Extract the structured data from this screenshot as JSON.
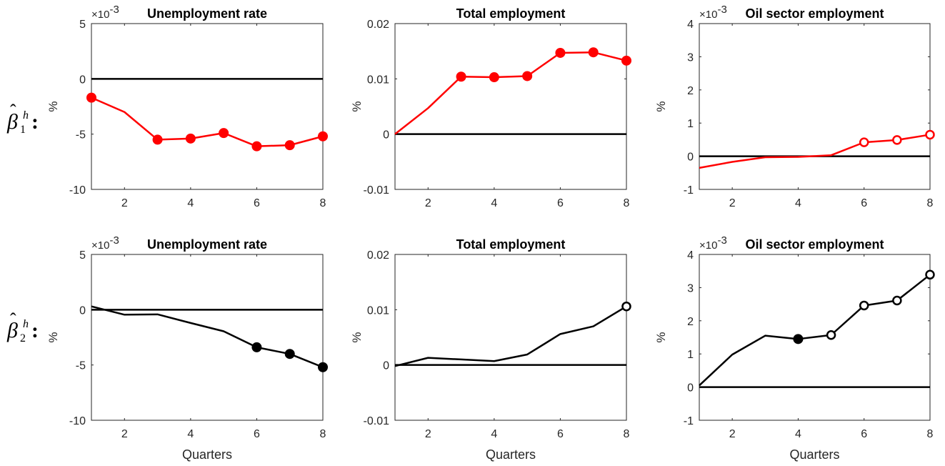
{
  "chart_data": [
    {
      "type": "line",
      "title": "Unemployment rate",
      "ylabel": "%",
      "xlabel": "",
      "exponent": "×10^{-3}",
      "x": [
        1,
        2,
        3,
        4,
        5,
        6,
        7,
        8
      ],
      "xticks": [
        "2",
        "4",
        "6",
        "8"
      ],
      "yticks": [
        "-10",
        "-5",
        "0",
        "5"
      ],
      "xlim": [
        1,
        8
      ],
      "ylim": [
        -10,
        5
      ],
      "color": "#ff0000",
      "zero_line": true,
      "series": [
        {
          "values": [
            -1.7,
            -3.0,
            -5.5,
            -5.4,
            -4.9,
            -6.1,
            -6.0,
            -5.2
          ],
          "markers": [
            "filled",
            "none",
            "filled",
            "filled",
            "filled",
            "filled",
            "filled",
            "filled"
          ]
        }
      ]
    },
    {
      "type": "line",
      "title": "Total employment",
      "ylabel": "%",
      "xlabel": "",
      "exponent": "",
      "x": [
        1,
        2,
        3,
        4,
        5,
        6,
        7,
        8
      ],
      "xticks": [
        "2",
        "4",
        "6",
        "8"
      ],
      "yticks": [
        "-0.01",
        "0",
        "0.01",
        "0.02"
      ],
      "xlim": [
        1,
        8
      ],
      "ylim": [
        -0.01,
        0.02
      ],
      "color": "#ff0000",
      "zero_line": true,
      "series": [
        {
          "values": [
            0.0,
            0.0047,
            0.0104,
            0.0103,
            0.0105,
            0.0147,
            0.0148,
            0.0133
          ],
          "markers": [
            "none",
            "none",
            "filled",
            "filled",
            "filled",
            "filled",
            "filled",
            "filled"
          ]
        }
      ]
    },
    {
      "type": "line",
      "title": "Oil sector employment",
      "ylabel": "%",
      "xlabel": "",
      "exponent": "×10^{-3}",
      "x": [
        1,
        2,
        3,
        4,
        5,
        6,
        7,
        8
      ],
      "xticks": [
        "2",
        "4",
        "6",
        "8"
      ],
      "yticks": [
        "-1",
        "0",
        "1",
        "2",
        "3",
        "4"
      ],
      "xlim": [
        1,
        8
      ],
      "ylim": [
        -1,
        4
      ],
      "color": "#ff0000",
      "zero_line": true,
      "series": [
        {
          "values": [
            -0.35,
            -0.17,
            -0.03,
            -0.02,
            0.03,
            0.42,
            0.49,
            0.65
          ],
          "markers": [
            "none",
            "none",
            "none",
            "none",
            "none",
            "open",
            "open",
            "open"
          ]
        }
      ]
    },
    {
      "type": "line",
      "title": "Unemployment rate",
      "ylabel": "%",
      "xlabel": "Quarters",
      "exponent": "×10^{-3}",
      "x": [
        1,
        2,
        3,
        4,
        5,
        6,
        7,
        8
      ],
      "xticks": [
        "2",
        "4",
        "6",
        "8"
      ],
      "yticks": [
        "-10",
        "-5",
        "0",
        "5"
      ],
      "xlim": [
        1,
        8
      ],
      "ylim": [
        -10,
        5
      ],
      "color": "#000000",
      "zero_line": true,
      "series": [
        {
          "values": [
            0.3,
            -0.45,
            -0.42,
            -1.2,
            -1.95,
            -3.4,
            -4.0,
            -5.2
          ],
          "markers": [
            "none",
            "none",
            "none",
            "none",
            "none",
            "filled",
            "filled",
            "filled"
          ]
        }
      ]
    },
    {
      "type": "line",
      "title": "Total employment",
      "ylabel": "%",
      "xlabel": "Quarters",
      "exponent": "",
      "x": [
        1,
        2,
        3,
        4,
        5,
        6,
        7,
        8
      ],
      "xticks": [
        "2",
        "4",
        "6",
        "8"
      ],
      "yticks": [
        "-0.01",
        "0",
        "0.01",
        "0.02"
      ],
      "xlim": [
        1,
        8
      ],
      "ylim": [
        -0.01,
        0.02
      ],
      "color": "#000000",
      "zero_line": true,
      "series": [
        {
          "values": [
            -0.0002,
            0.0013,
            0.001,
            0.0007,
            0.0019,
            0.0056,
            0.007,
            0.0106
          ],
          "markers": [
            "none",
            "none",
            "none",
            "none",
            "none",
            "none",
            "none",
            "open"
          ]
        }
      ]
    },
    {
      "type": "line",
      "title": "Oil sector employment",
      "ylabel": "%",
      "xlabel": "Quarters",
      "exponent": "×10^{-3}",
      "x": [
        1,
        2,
        3,
        4,
        5,
        6,
        7,
        8
      ],
      "xticks": [
        "2",
        "4",
        "6",
        "8"
      ],
      "yticks": [
        "-1",
        "0",
        "1",
        "2",
        "3",
        "4"
      ],
      "xlim": [
        1,
        8
      ],
      "ylim": [
        -1,
        4
      ],
      "color": "#000000",
      "zero_line": true,
      "series": [
        {
          "values": [
            0.05,
            0.98,
            1.55,
            1.45,
            1.57,
            2.46,
            2.61,
            3.39
          ],
          "markers": [
            "none",
            "none",
            "none",
            "filled",
            "open",
            "open",
            "open",
            "open"
          ]
        }
      ]
    }
  ],
  "row_labels": [
    {
      "base": "β",
      "hat": "ˆ",
      "sub": "1",
      "sup": "h",
      "colon": ":"
    },
    {
      "base": "β",
      "hat": "ˆ",
      "sub": "2",
      "sup": "h",
      "colon": ":"
    }
  ]
}
